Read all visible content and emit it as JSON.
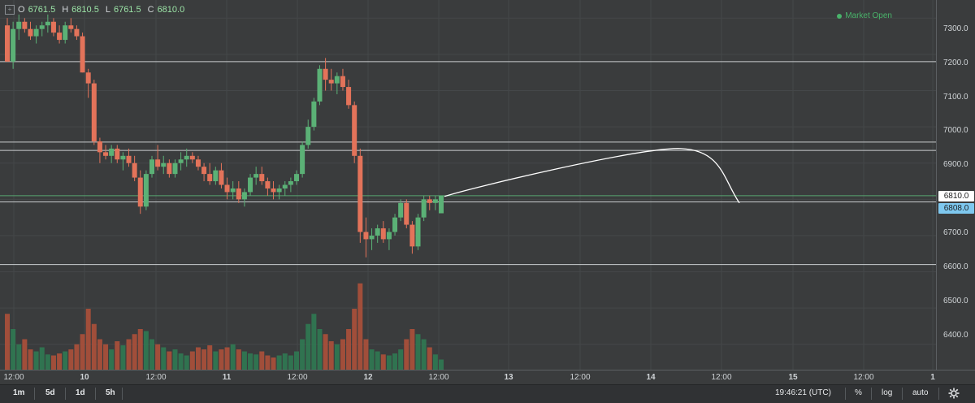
{
  "legend": {
    "box": "+",
    "o_label": "O",
    "o": "6761.5",
    "h_label": "H",
    "h": "6810.5",
    "l_label": "L",
    "l": "6761.5",
    "c_label": "C",
    "c": "6810.0"
  },
  "status": {
    "text": "Market Open",
    "color": "#49b36a"
  },
  "price_axis": {
    "ticks": [
      "7300.0",
      "7200.0",
      "7100.0",
      "7000.0",
      "6900.0",
      "6800.0",
      "6700.0",
      "6600.0",
      "6500.0",
      "6400.0"
    ],
    "last_price": "6810.0",
    "marker_price": "6808.0"
  },
  "time_axis": [
    "12:00",
    "10",
    "12:00",
    "11",
    "12:00",
    "12",
    "12:00",
    "13",
    "12:00",
    "14",
    "12:00",
    "15",
    "12:00",
    "1"
  ],
  "bottom_bar": {
    "intervals": [
      "1m",
      "5d",
      "1d",
      "5h"
    ],
    "clock": "19:46:21 (UTC)",
    "percent": "%",
    "log": "log",
    "auto": "auto",
    "settings_icon": "gear-icon"
  },
  "colors": {
    "up": "#5bb176",
    "down": "#e3735a",
    "bg": "#3a3c3d",
    "vol_up": "#2f7c53",
    "vol_down": "#b4513a"
  },
  "chart_data": {
    "type": "candlestick",
    "y_range": [
      6330,
      7350
    ],
    "hlines": [
      7180,
      6958,
      6935,
      6810,
      6793,
      6620
    ],
    "candles": [
      [
        7280,
        7300,
        7180,
        7180
      ],
      [
        7180,
        7290,
        7160,
        7270
      ],
      [
        7270,
        7310,
        7240,
        7290
      ],
      [
        7290,
        7300,
        7260,
        7270
      ],
      [
        7270,
        7290,
        7240,
        7250
      ],
      [
        7250,
        7280,
        7230,
        7270
      ],
      [
        7270,
        7290,
        7250,
        7280
      ],
      [
        7280,
        7310,
        7260,
        7290
      ],
      [
        7290,
        7300,
        7250,
        7260
      ],
      [
        7260,
        7280,
        7230,
        7240
      ],
      [
        7240,
        7290,
        7230,
        7280
      ],
      [
        7280,
        7300,
        7260,
        7270
      ],
      [
        7270,
        7280,
        7240,
        7250
      ],
      [
        7250,
        7260,
        7150,
        7150
      ],
      [
        7150,
        7160,
        7080,
        7120
      ],
      [
        7120,
        7130,
        6950,
        6960
      ],
      [
        6960,
        6970,
        6900,
        6930
      ],
      [
        6930,
        6950,
        6910,
        6920
      ],
      [
        6920,
        6950,
        6900,
        6940
      ],
      [
        6940,
        6950,
        6900,
        6910
      ],
      [
        6910,
        6930,
        6880,
        6920
      ],
      [
        6920,
        6940,
        6890,
        6900
      ],
      [
        6900,
        6920,
        6850,
        6860
      ],
      [
        6860,
        6880,
        6760,
        6780
      ],
      [
        6780,
        6880,
        6770,
        6870
      ],
      [
        6870,
        6920,
        6860,
        6910
      ],
      [
        6910,
        6950,
        6880,
        6890
      ],
      [
        6890,
        6920,
        6870,
        6900
      ],
      [
        6900,
        6910,
        6860,
        6870
      ],
      [
        6870,
        6910,
        6860,
        6900
      ],
      [
        6900,
        6930,
        6880,
        6910
      ],
      [
        6910,
        6940,
        6890,
        6920
      ],
      [
        6920,
        6930,
        6900,
        6910
      ],
      [
        6910,
        6920,
        6880,
        6890
      ],
      [
        6890,
        6900,
        6850,
        6870
      ],
      [
        6870,
        6900,
        6840,
        6850
      ],
      [
        6850,
        6890,
        6840,
        6880
      ],
      [
        6880,
        6900,
        6830,
        6840
      ],
      [
        6840,
        6860,
        6800,
        6820
      ],
      [
        6820,
        6850,
        6800,
        6830
      ],
      [
        6830,
        6850,
        6790,
        6800
      ],
      [
        6800,
        6830,
        6780,
        6820
      ],
      [
        6820,
        6870,
        6810,
        6860
      ],
      [
        6860,
        6890,
        6840,
        6870
      ],
      [
        6870,
        6890,
        6840,
        6850
      ],
      [
        6850,
        6860,
        6810,
        6830
      ],
      [
        6830,
        6850,
        6800,
        6820
      ],
      [
        6820,
        6840,
        6800,
        6830
      ],
      [
        6830,
        6850,
        6810,
        6840
      ],
      [
        6840,
        6860,
        6820,
        6850
      ],
      [
        6850,
        6880,
        6840,
        6870
      ],
      [
        6870,
        6960,
        6860,
        6950
      ],
      [
        6950,
        7020,
        6940,
        7000
      ],
      [
        7000,
        7080,
        6990,
        7070
      ],
      [
        7070,
        7170,
        7060,
        7160
      ],
      [
        7160,
        7190,
        7100,
        7130
      ],
      [
        7130,
        7160,
        7100,
        7120
      ],
      [
        7120,
        7150,
        7090,
        7140
      ],
      [
        7140,
        7160,
        7100,
        7110
      ],
      [
        7110,
        7130,
        7050,
        7060
      ],
      [
        7060,
        7070,
        6900,
        6920
      ],
      [
        6920,
        6940,
        6680,
        6710
      ],
      [
        6710,
        6750,
        6640,
        6690
      ],
      [
        6690,
        6720,
        6660,
        6700
      ],
      [
        6700,
        6730,
        6680,
        6720
      ],
      [
        6720,
        6740,
        6680,
        6690
      ],
      [
        6690,
        6720,
        6660,
        6710
      ],
      [
        6710,
        6760,
        6700,
        6750
      ],
      [
        6750,
        6800,
        6740,
        6790
      ],
      [
        6790,
        6800,
        6720,
        6730
      ],
      [
        6730,
        6740,
        6650,
        6670
      ],
      [
        6670,
        6760,
        6660,
        6750
      ],
      [
        6750,
        6810,
        6740,
        6800
      ],
      [
        6800,
        6810,
        6770,
        6790
      ],
      [
        6790,
        6810,
        6770,
        6800
      ],
      [
        6761.5,
        6810.5,
        6761.5,
        6810
      ]
    ],
    "volumes": [
      55,
      40,
      25,
      30,
      20,
      18,
      22,
      15,
      14,
      16,
      18,
      20,
      25,
      35,
      60,
      45,
      30,
      25,
      20,
      28,
      24,
      30,
      35,
      40,
      38,
      30,
      25,
      22,
      18,
      20,
      16,
      14,
      18,
      22,
      20,
      24,
      18,
      20,
      22,
      25,
      20,
      18,
      16,
      15,
      18,
      14,
      12,
      14,
      16,
      14,
      18,
      30,
      45,
      55,
      40,
      35,
      28,
      25,
      30,
      40,
      60,
      85,
      30,
      20,
      18,
      15,
      14,
      16,
      20,
      30,
      40,
      35,
      30,
      22,
      15,
      10
    ],
    "forecast_curve": [
      [
        6808,
        "start"
      ],
      [
        6940,
        "peak"
      ],
      [
        6790,
        "end"
      ]
    ]
  }
}
